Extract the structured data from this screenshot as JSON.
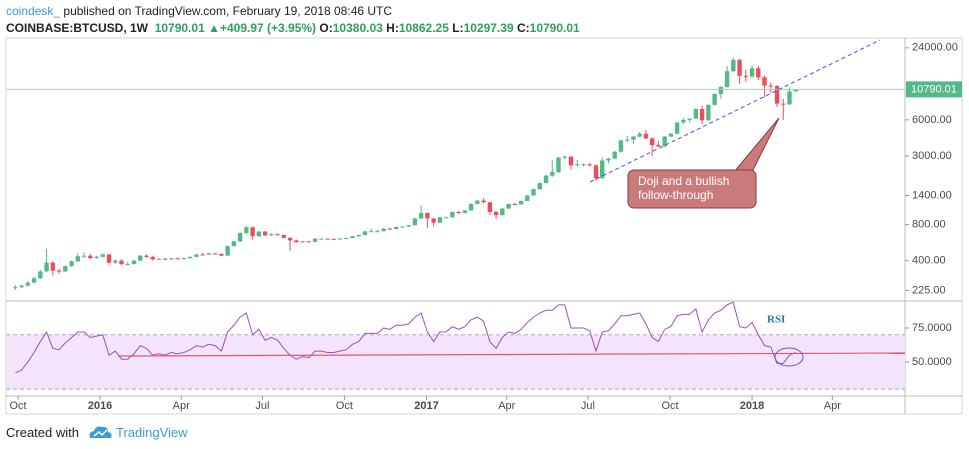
{
  "header": {
    "author": "coindesk_",
    "published": "published on TradingView.com, February 19, 2018 08:46 UTC",
    "symbol": "COINBASE:BTCUSD, 1W",
    "change": "+409.97 (+3.95%)",
    "open_label": "O:",
    "high_label": "H:",
    "low_label": "L:",
    "close_label": "C:"
  },
  "footer": {
    "created_with": "Created with",
    "brand": "TradingView"
  },
  "chart_data": [
    {
      "type": "candlestick",
      "log_scale": true,
      "up_color": "#53b987",
      "down_color": "#eb4d5c",
      "ylim": [
        187.5,
        29000
      ],
      "xlim": [
        -1.5,
        142.5
      ],
      "yticks": [
        {
          "value": 225,
          "label": "225.00"
        },
        {
          "value": 400,
          "label": "400.00"
        },
        {
          "value": 800,
          "label": "800.00"
        },
        {
          "value": 1400,
          "label": "1400.00"
        },
        {
          "value": 3000,
          "label": "3000.00"
        },
        {
          "value": 6000,
          "label": "6000.00"
        },
        {
          "value": 24000,
          "label": "24000.00"
        }
      ],
      "annotation": [
        "Doji and a bullish",
        "follow-through"
      ],
      "open": [
        235,
        240,
        247,
        262,
        285,
        325,
        385,
        330,
        325,
        360,
        395,
        435,
        440,
        420,
        430,
        450,
        385,
        400,
        375,
        375,
        400,
        440,
        430,
        410,
        415,
        410,
        418,
        415,
        420,
        430,
        450,
        448,
        460,
        455,
        440,
        530,
        580,
        680,
        760,
        640,
        700,
        650,
        665,
        655,
        620,
        590,
        570,
        580,
        575,
        610,
        610,
        608,
        605,
        612,
        618,
        640,
        655,
        700,
        705,
        705,
        740,
        735,
        765,
        770,
        790,
        900,
        1000,
        900,
        830,
        920,
        920,
        1020,
        1000,
        1050,
        1190,
        1270,
        1230,
        1020,
        960,
        1090,
        1190,
        1180,
        1260,
        1400,
        1580,
        1780,
        2050,
        2200,
        2900,
        2960,
        2500,
        2550,
        2550,
        2500,
        1950,
        2750,
        2850,
        3250,
        4050,
        4100,
        4350,
        4600,
        4200,
        3700,
        3600,
        4350,
        4600,
        5700,
        6000,
        6150,
        7400,
        5950,
        8000,
        9900,
        11300,
        15300,
        19000,
        14000,
        13800,
        16200,
        13600,
        11600,
        11500,
        8200,
        8100,
        10380.03
      ],
      "high": [
        250,
        252,
        270,
        295,
        335,
        500,
        395,
        340,
        365,
        400,
        460,
        470,
        455,
        440,
        460,
        455,
        410,
        410,
        390,
        405,
        445,
        450,
        440,
        420,
        420,
        422,
        425,
        425,
        435,
        455,
        465,
        465,
        465,
        460,
        535,
        585,
        690,
        780,
        770,
        710,
        705,
        680,
        675,
        660,
        625,
        600,
        585,
        585,
        615,
        615,
        612,
        610,
        614,
        620,
        642,
        660,
        710,
        740,
        725,
        750,
        755,
        770,
        775,
        795,
        910,
        1150,
        1010,
        910,
        930,
        935,
        1030,
        1040,
        1060,
        1210,
        1290,
        1330,
        1240,
        1050,
        1110,
        1200,
        1210,
        1270,
        1410,
        1600,
        1800,
        2100,
        2750,
        2950,
        3000,
        2980,
        2780,
        2600,
        2620,
        2550,
        2900,
        2900,
        3300,
        4100,
        4400,
        4400,
        4750,
        4950,
        4300,
        4000,
        4400,
        4650,
        5800,
        6200,
        6200,
        7500,
        7900,
        8100,
        10000,
        11500,
        17000,
        19800,
        19500,
        15800,
        17200,
        17000,
        14000,
        12300,
        11700,
        9000,
        11200,
        10862.25
      ],
      "low": [
        228,
        236,
        244,
        258,
        280,
        320,
        300,
        310,
        320,
        355,
        390,
        420,
        410,
        415,
        425,
        370,
        375,
        365,
        365,
        370,
        395,
        420,
        400,
        405,
        405,
        405,
        410,
        410,
        415,
        425,
        440,
        445,
        450,
        435,
        438,
        520,
        570,
        660,
        600,
        630,
        640,
        645,
        650,
        610,
        480,
        565,
        565,
        570,
        570,
        600,
        604,
        600,
        603,
        610,
        615,
        635,
        650,
        690,
        690,
        700,
        725,
        730,
        755,
        765,
        785,
        890,
        750,
        770,
        820,
        905,
        915,
        980,
        990,
        1045,
        1180,
        1200,
        960,
        890,
        950,
        1080,
        1160,
        1175,
        1255,
        1390,
        1570,
        1770,
        2000,
        2150,
        2800,
        2300,
        2450,
        2450,
        2450,
        1850,
        1940,
        2600,
        2800,
        3200,
        3900,
        3800,
        4300,
        4150,
        3000,
        3550,
        3580,
        4300,
        4550,
        5500,
        5700,
        6100,
        5500,
        5900,
        7900,
        9000,
        11200,
        15000,
        12000,
        12500,
        13500,
        12900,
        9200,
        10100,
        7700,
        6000,
        8000,
        10297.39
      ],
      "close": [
        240,
        247,
        262,
        285,
        325,
        385,
        330,
        325,
        360,
        395,
        435,
        440,
        420,
        430,
        450,
        385,
        400,
        375,
        375,
        400,
        440,
        430,
        410,
        415,
        410,
        418,
        415,
        420,
        430,
        450,
        448,
        460,
        455,
        440,
        530,
        580,
        680,
        760,
        640,
        700,
        650,
        665,
        655,
        620,
        590,
        570,
        580,
        575,
        610,
        610,
        608,
        605,
        612,
        618,
        640,
        655,
        700,
        705,
        705,
        740,
        735,
        765,
        770,
        790,
        900,
        1000,
        900,
        830,
        920,
        920,
        1020,
        1000,
        1050,
        1190,
        1270,
        1230,
        1020,
        960,
        1090,
        1190,
        1180,
        1260,
        1400,
        1580,
        1780,
        2050,
        2200,
        2900,
        2960,
        2500,
        2550,
        2550,
        2500,
        1950,
        2750,
        2850,
        3250,
        4050,
        4100,
        4350,
        4600,
        4200,
        3700,
        3600,
        4350,
        4600,
        5700,
        6000,
        6150,
        7400,
        5950,
        8000,
        9900,
        11300,
        15300,
        19000,
        14000,
        13800,
        16200,
        13600,
        11600,
        11500,
        8200,
        8100,
        10380.03,
        10790.01
      ]
    },
    {
      "type": "line",
      "title": "RSI",
      "color": "#9c4fc7",
      "band": [
        30,
        70
      ],
      "band_color": "#f3e3fb",
      "ylim": [
        25.7,
        94.1
      ],
      "xlim": [
        -1.5,
        142.5
      ],
      "yticks": [
        {
          "value": 50,
          "label": "50.0000"
        },
        {
          "value": 75,
          "label": "75.0000"
        }
      ],
      "xticks": [
        {
          "value": 0.43,
          "label": "Oct"
        },
        {
          "value": 13.57,
          "label": "2016"
        },
        {
          "value": 26.57,
          "label": "Apr"
        },
        {
          "value": 39.57,
          "label": "Jul"
        },
        {
          "value": 52.71,
          "label": "Oct"
        },
        {
          "value": 65.86,
          "label": "2017"
        },
        {
          "value": 78.71,
          "label": "Apr"
        },
        {
          "value": 91.71,
          "label": "Jul"
        },
        {
          "value": 104.86,
          "label": "Oct"
        },
        {
          "value": 118,
          "label": "2018"
        },
        {
          "value": 130.86,
          "label": "Apr"
        }
      ],
      "values": [
        42,
        44,
        50,
        57,
        65,
        72,
        60,
        59,
        64,
        68,
        72,
        72,
        68,
        69,
        70,
        55,
        58,
        52,
        52,
        56,
        62,
        60,
        55,
        56,
        55,
        57,
        56,
        57,
        59,
        62,
        61,
        63,
        62,
        58,
        72,
        77,
        83,
        86,
        70,
        74,
        66,
        68,
        66,
        60,
        55,
        52,
        54,
        53,
        58,
        58,
        57,
        57,
        58,
        59,
        63,
        65,
        71,
        71,
        71,
        75,
        74,
        77,
        77,
        78,
        83,
        86,
        72,
        65,
        72,
        72,
        76,
        74,
        76,
        81,
        83,
        80,
        65,
        60,
        68,
        72,
        71,
        74,
        79,
        83,
        86,
        88,
        88,
        92,
        92,
        75,
        75,
        75,
        73,
        58,
        72,
        73,
        78,
        84,
        84,
        85,
        86,
        78,
        68,
        65,
        74,
        76,
        84,
        85,
        85,
        89,
        72,
        81,
        86,
        88,
        92,
        94,
        76,
        75,
        79,
        70,
        62,
        61,
        49,
        49,
        55,
        57
      ]
    }
  ]
}
